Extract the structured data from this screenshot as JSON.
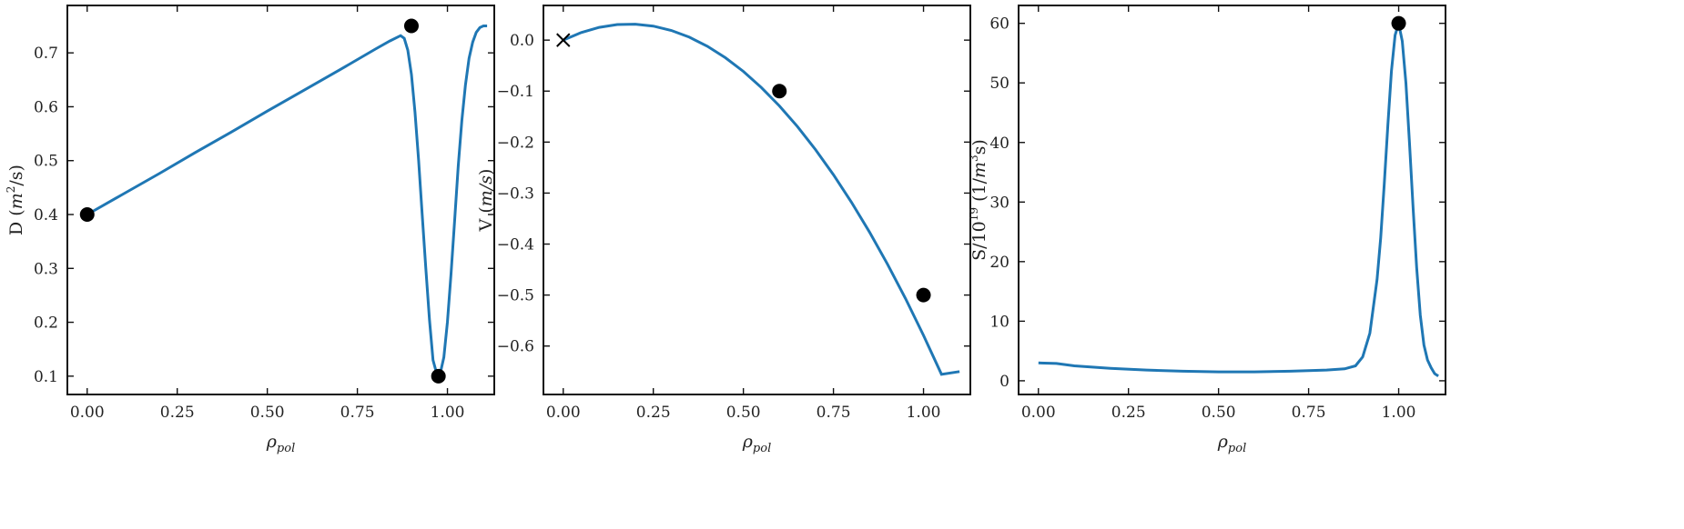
{
  "chart_data": [
    {
      "type": "line",
      "xlabel": "ρ",
      "xlabel_sub": "pol",
      "ylabel_parts": [
        {
          "t": "D ("
        },
        {
          "t": "m"
        },
        {
          "t": "2",
          "sup": true
        },
        {
          "t": "/s)"
        }
      ],
      "xlim": [
        -0.055,
        1.13
      ],
      "ylim": [
        0.066,
        0.788
      ],
      "xticks": [
        0.0,
        0.25,
        0.5,
        0.75,
        1.0
      ],
      "xtick_labels": [
        "0.00",
        "0.25",
        "0.50",
        "0.75",
        "1.00"
      ],
      "yticks": [
        0.1,
        0.2,
        0.3,
        0.4,
        0.5,
        0.6,
        0.7
      ],
      "ytick_labels": [
        "0.1",
        "0.2",
        "0.3",
        "0.4",
        "0.5",
        "0.6",
        "0.7"
      ],
      "series": [
        {
          "x": [
            0.0,
            0.1,
            0.2,
            0.3,
            0.4,
            0.5,
            0.6,
            0.7,
            0.8,
            0.84,
            0.87,
            0.88,
            0.89,
            0.9,
            0.91,
            0.92,
            0.93,
            0.94,
            0.95,
            0.96,
            0.97,
            0.975,
            0.98,
            0.99,
            1.0,
            1.01,
            1.02,
            1.03,
            1.04,
            1.05,
            1.06,
            1.07,
            1.08,
            1.09,
            1.1,
            1.11
          ],
          "y": [
            0.4,
            0.438,
            0.476,
            0.515,
            0.553,
            0.592,
            0.63,
            0.668,
            0.707,
            0.722,
            0.732,
            0.727,
            0.705,
            0.66,
            0.59,
            0.5,
            0.4,
            0.3,
            0.205,
            0.13,
            0.105,
            0.1,
            0.105,
            0.135,
            0.2,
            0.29,
            0.39,
            0.49,
            0.575,
            0.64,
            0.69,
            0.72,
            0.738,
            0.747,
            0.75,
            0.75
          ]
        }
      ],
      "points": [
        {
          "x": 0.0,
          "y": 0.4,
          "marker": "o"
        },
        {
          "x": 0.9,
          "y": 0.75,
          "marker": "o"
        },
        {
          "x": 0.975,
          "y": 0.1,
          "marker": "o"
        }
      ]
    },
    {
      "type": "line",
      "xlabel": "ρ",
      "xlabel_sub": "pol",
      "ylabel_parts": [
        {
          "t": "V ("
        },
        {
          "t": "m/s"
        },
        {
          "t": ")"
        }
      ],
      "xlim": [
        -0.055,
        1.13
      ],
      "ylim": [
        -0.695,
        0.068
      ],
      "xticks": [
        0.0,
        0.25,
        0.5,
        0.75,
        1.0
      ],
      "xtick_labels": [
        "0.00",
        "0.25",
        "0.50",
        "0.75",
        "1.00"
      ],
      "yticks": [
        0.0,
        -0.1,
        -0.2,
        -0.3,
        -0.4,
        -0.5,
        -0.6
      ],
      "ytick_labels": [
        "0.0",
        "−0.1",
        "−0.2",
        "−0.3",
        "−0.4",
        "−0.5",
        "−0.6"
      ],
      "series": [
        {
          "x": [
            0.0,
            0.05,
            0.1,
            0.15,
            0.2,
            0.25,
            0.3,
            0.35,
            0.4,
            0.45,
            0.5,
            0.55,
            0.6,
            0.65,
            0.7,
            0.75,
            0.8,
            0.85,
            0.9,
            0.95,
            1.0,
            1.05,
            1.1
          ],
          "y": [
            0.0,
            0.0148,
            0.025,
            0.0305,
            0.0313,
            0.0275,
            0.019,
            0.0058,
            -0.012,
            -0.0345,
            -0.0615,
            -0.093,
            -0.129,
            -0.1695,
            -0.2145,
            -0.264,
            -0.318,
            -0.3765,
            -0.4395,
            -0.507,
            -0.579,
            -0.6555,
            -0.65
          ]
        }
      ],
      "points": [
        {
          "x": 0.0,
          "y": 0.0,
          "marker": "x"
        },
        {
          "x": 0.6,
          "y": -0.1,
          "marker": "o"
        },
        {
          "x": 1.0,
          "y": -0.5,
          "marker": "o"
        }
      ]
    },
    {
      "type": "line",
      "xlabel": "ρ",
      "xlabel_sub": "pol",
      "ylabel_parts": [
        {
          "t": "S/10"
        },
        {
          "t": "19",
          "sup": true
        },
        {
          "t": " (1/"
        },
        {
          "t": "m"
        },
        {
          "t": "3",
          "sup": true
        },
        {
          "t": "s)"
        }
      ],
      "xlim": [
        -0.055,
        1.13
      ],
      "ylim": [
        -2.3,
        63.0
      ],
      "xticks": [
        0.0,
        0.25,
        0.5,
        0.75,
        1.0
      ],
      "xtick_labels": [
        "0.00",
        "0.25",
        "0.50",
        "0.75",
        "1.00"
      ],
      "yticks": [
        0,
        10,
        20,
        30,
        40,
        50,
        60
      ],
      "ytick_labels": [
        "0",
        "10",
        "20",
        "30",
        "40",
        "50",
        "60"
      ],
      "series": [
        {
          "x": [
            0.0,
            0.05,
            0.1,
            0.2,
            0.3,
            0.4,
            0.5,
            0.6,
            0.7,
            0.8,
            0.85,
            0.88,
            0.9,
            0.92,
            0.94,
            0.95,
            0.96,
            0.97,
            0.98,
            0.99,
            1.0,
            1.01,
            1.02,
            1.03,
            1.04,
            1.05,
            1.06,
            1.07,
            1.08,
            1.09,
            1.1,
            1.11
          ],
          "y": [
            3.0,
            2.9,
            2.5,
            2.1,
            1.8,
            1.6,
            1.5,
            1.5,
            1.6,
            1.8,
            2.0,
            2.5,
            4.0,
            8.0,
            17.0,
            24.0,
            33.0,
            43.0,
            52.0,
            58.0,
            60.0,
            57.0,
            50.0,
            40.0,
            29.0,
            19.0,
            11.0,
            6.0,
            3.5,
            2.2,
            1.2,
            0.8
          ]
        }
      ],
      "points": [
        {
          "x": 1.0,
          "y": 60.0,
          "marker": "o"
        }
      ]
    }
  ]
}
